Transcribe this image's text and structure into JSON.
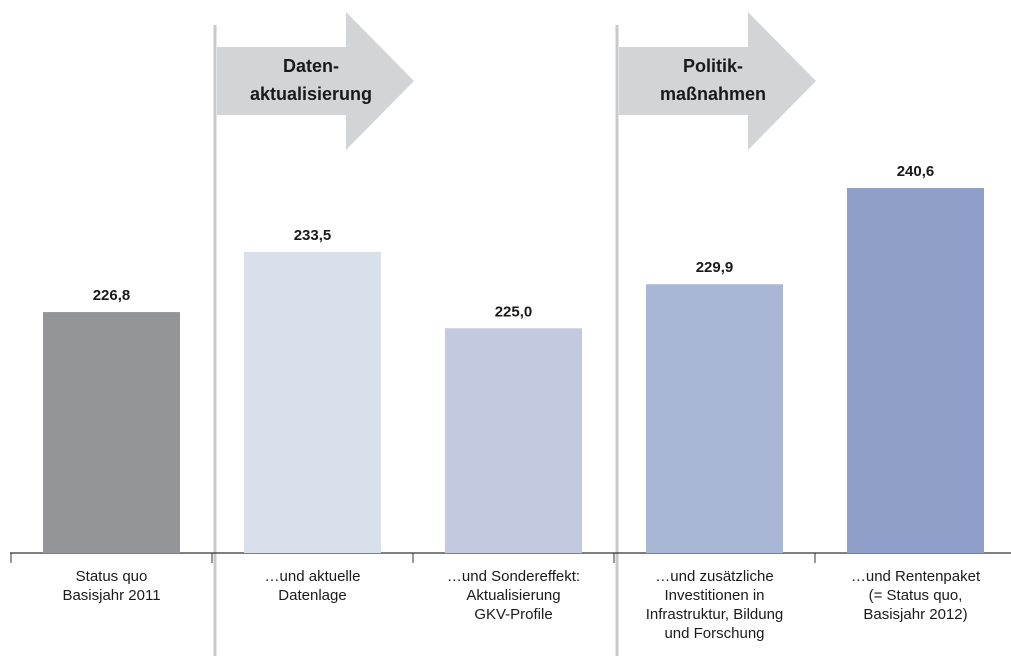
{
  "chart_data": {
    "type": "bar",
    "categories": [
      "Status quo\nBasisjahr 2011",
      "…und aktuelle\nDatenlage",
      "…und Sondereffekt:\nAktualisierung\nGKV-Profile",
      "…und zusätzliche\nInvestitionen in\nInfrastruktur, Bildung\nund Forschung",
      "…und Rentenpaket\n(= Status quo,\nBasisjahr 2012)"
    ],
    "values": [
      226.8,
      233.5,
      225.0,
      229.9,
      240.6
    ],
    "value_labels": [
      "226,8",
      "233,5",
      "225,0",
      "229,9",
      "240,6"
    ],
    "colors": [
      "#939598",
      "#d9dfeb",
      "#c3cadf",
      "#aab6d6",
      "#8f9fc9"
    ],
    "ylim": [
      200,
      250
    ],
    "annotations": [
      "Daten-\naktualisierung",
      "Politik-\nmaßnahmen"
    ]
  }
}
